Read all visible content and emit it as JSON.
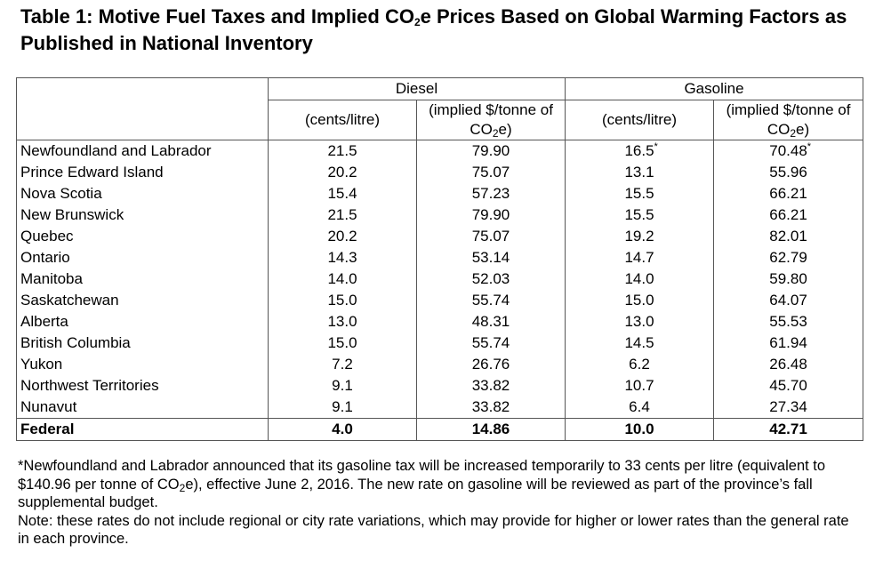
{
  "title": {
    "pre": "Table 1: Motive Fuel Taxes and Implied CO",
    "sub": "2",
    "post": "e Prices Based on Global Warming Factors as Published in National Inventory"
  },
  "headers": {
    "diesel": "Diesel",
    "gasoline": "Gasoline",
    "cents_per_litre": "(cents/litre)",
    "implied_pre": "(implied $/tonne of CO",
    "implied_sub": "2",
    "implied_post": "e)"
  },
  "rows": [
    {
      "province": "Newfoundland and Labrador",
      "diesel_cents": "21.5",
      "diesel_implied": "79.90",
      "gas_cents": "16.5",
      "gas_implied": "70.48",
      "gas_cents_mark": "*",
      "gas_implied_mark": "*"
    },
    {
      "province": "Prince Edward Island",
      "diesel_cents": "20.2",
      "diesel_implied": "75.07",
      "gas_cents": "13.1",
      "gas_implied": "55.96"
    },
    {
      "province": "Nova Scotia",
      "diesel_cents": "15.4",
      "diesel_implied": "57.23",
      "gas_cents": "15.5",
      "gas_implied": "66.21"
    },
    {
      "province": "New Brunswick",
      "diesel_cents": "21.5",
      "diesel_implied": "79.90",
      "gas_cents": "15.5",
      "gas_implied": "66.21"
    },
    {
      "province": "Quebec",
      "diesel_cents": "20.2",
      "diesel_implied": "75.07",
      "gas_cents": "19.2",
      "gas_implied": "82.01"
    },
    {
      "province": "Ontario",
      "diesel_cents": "14.3",
      "diesel_implied": "53.14",
      "gas_cents": "14.7",
      "gas_implied": "62.79"
    },
    {
      "province": "Manitoba",
      "diesel_cents": "14.0",
      "diesel_implied": "52.03",
      "gas_cents": "14.0",
      "gas_implied": "59.80"
    },
    {
      "province": "Saskatchewan",
      "diesel_cents": "15.0",
      "diesel_implied": "55.74",
      "gas_cents": "15.0",
      "gas_implied": "64.07"
    },
    {
      "province": "Alberta",
      "diesel_cents": "13.0",
      "diesel_implied": "48.31",
      "gas_cents": "13.0",
      "gas_implied": "55.53"
    },
    {
      "province": "British Columbia",
      "diesel_cents": "15.0",
      "diesel_implied": "55.74",
      "gas_cents": "14.5",
      "gas_implied": "61.94"
    },
    {
      "province": "Yukon",
      "diesel_cents": "7.2",
      "diesel_implied": "26.76",
      "gas_cents": "6.2",
      "gas_implied": "26.48"
    },
    {
      "province": "Northwest Territories",
      "diesel_cents": "9.1",
      "diesel_implied": "33.82",
      "gas_cents": "10.7",
      "gas_implied": "45.70"
    },
    {
      "province": "Nunavut",
      "diesel_cents": "9.1",
      "diesel_implied": "33.82",
      "gas_cents": "6.4",
      "gas_implied": "27.34"
    }
  ],
  "federal": {
    "province": "Federal",
    "diesel_cents": "4.0",
    "diesel_implied": "14.86",
    "gas_cents": "10.0",
    "gas_implied": "42.71"
  },
  "footnote": {
    "pre": "*Newfoundland and Labrador announced that its gasoline tax will be increased temporarily to 33 cents per litre (equivalent to $140.96 per tonne of CO",
    "sub": "2",
    "post": "e), effective June 2, 2016. The new rate on gasoline will be reviewed as part of the province’s fall supplemental budget."
  },
  "note": "Note: these rates do not include regional or city rate variations, which may provide for higher or lower rates than the general rate in each province."
}
